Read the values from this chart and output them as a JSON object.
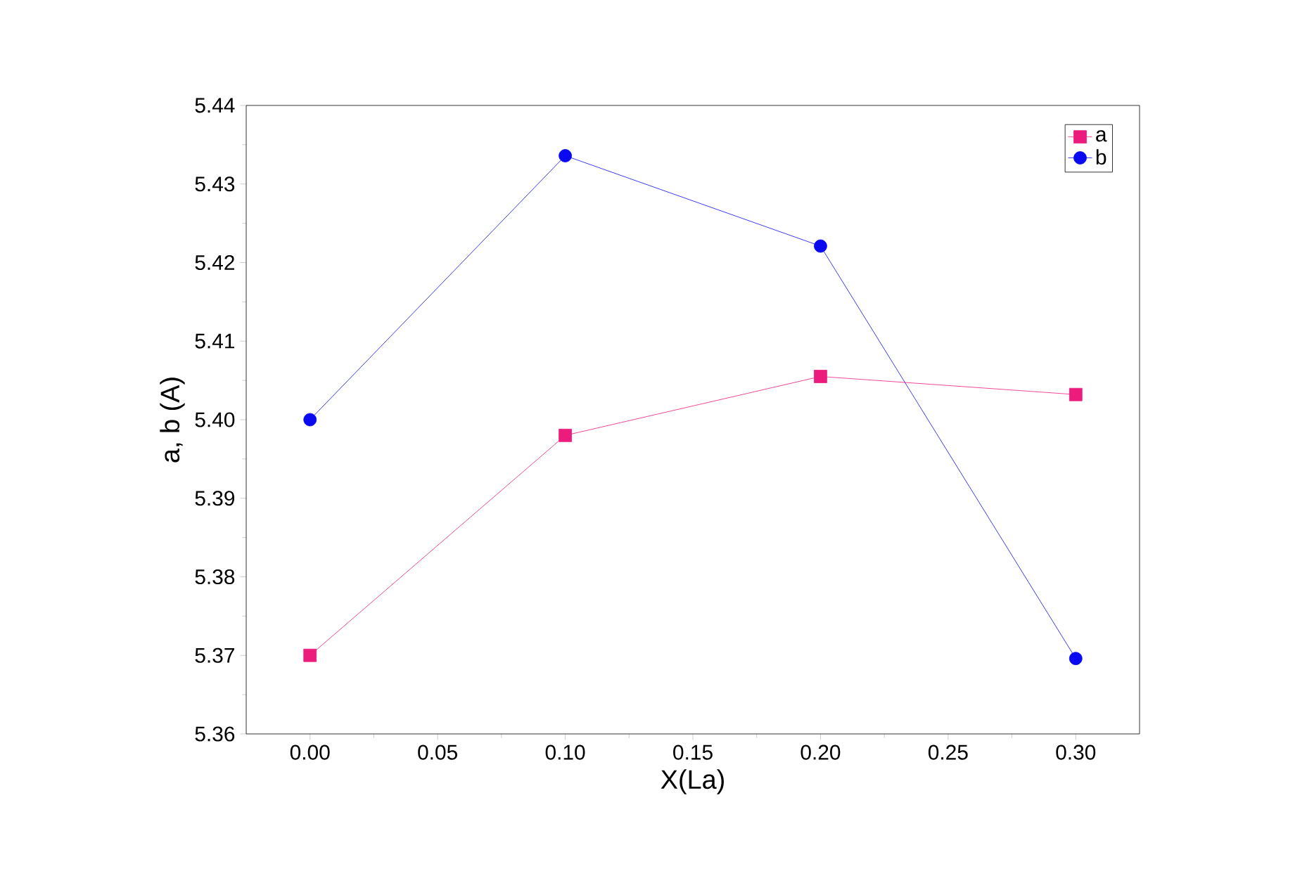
{
  "chart_data": {
    "type": "line",
    "xlabel": "X(La)",
    "ylabel": "a, b (A)",
    "x": [
      0.0,
      0.1,
      0.2,
      0.3
    ],
    "series": [
      {
        "name": "a",
        "color": "#ec1c7c",
        "marker": "square",
        "values": [
          5.37,
          5.398,
          5.4055,
          5.4032
        ]
      },
      {
        "name": "b",
        "color": "#0a0af0",
        "marker": "circle",
        "values": [
          5.4,
          5.4336,
          5.4221,
          5.3696
        ]
      }
    ],
    "xlim": [
      -0.025,
      0.325
    ],
    "xticks": [
      {
        "value": 0.0,
        "label": "0.00"
      },
      0.05,
      {
        "value": 0.1,
        "label": "0.10"
      },
      0.15,
      {
        "value": 0.2,
        "label": "0.20"
      },
      0.25,
      {
        "value": 0.3,
        "label": "0.30"
      }
    ],
    "ylim": [
      5.36,
      5.44
    ],
    "yticks": [
      5.36,
      5.37,
      5.38,
      5.39,
      {
        "value": 5.4,
        "label": "5.40"
      },
      5.41,
      5.42,
      5.43,
      5.44
    ],
    "grid": false,
    "legend": "top right",
    "line_style": "solid"
  }
}
